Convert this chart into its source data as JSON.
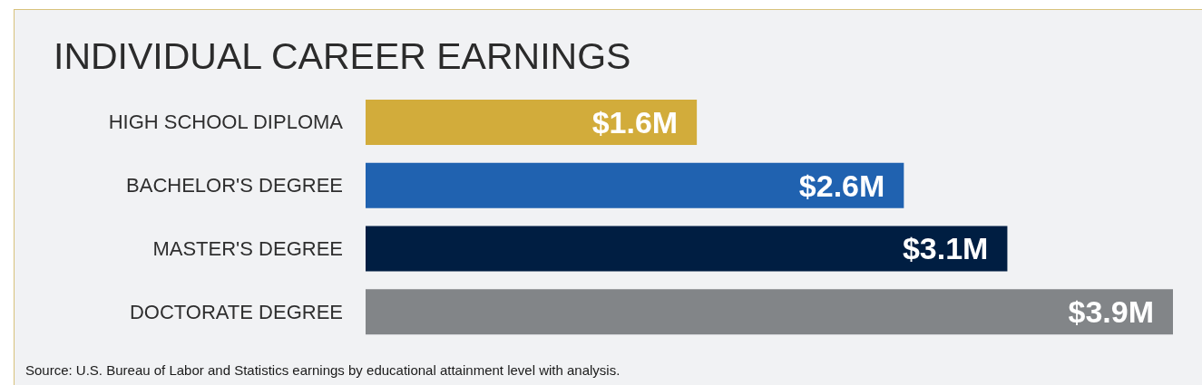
{
  "chart_data": {
    "type": "bar",
    "orientation": "horizontal",
    "title": "INDIVIDUAL CAREER EARNINGS",
    "categories": [
      "HIGH SCHOOL DIPLOMA",
      "BACHELOR'S DEGREE",
      "MASTER'S DEGREE",
      "DOCTORATE DEGREE"
    ],
    "values": [
      1.6,
      2.6,
      3.1,
      3.9
    ],
    "value_labels": [
      "$1.6M",
      "$2.6M",
      "$3.1M",
      "$3.9M"
    ],
    "colors": [
      "#d2ac3b",
      "#2062b0",
      "#001e42",
      "#828588"
    ],
    "tick_labels": "y",
    "grid": false,
    "annotations": [
      "Source: U.S. Bureau of Labor and Statistics earnings by educational attainment level with analysis."
    ]
  }
}
